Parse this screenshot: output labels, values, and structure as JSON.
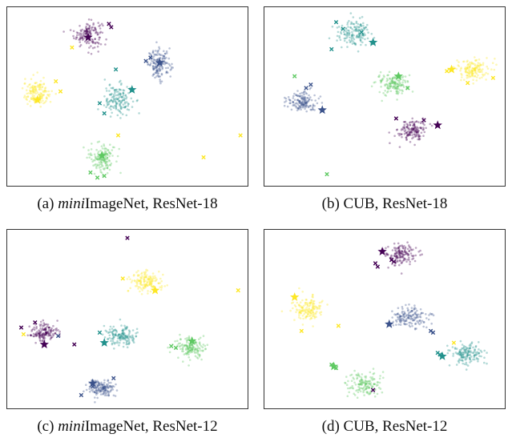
{
  "figure": {
    "panels": [
      {
        "letter": "(a)",
        "dataset_italic": "mini",
        "dataset_rest": "ImageNet",
        "backbone": ", ResNet-18"
      },
      {
        "letter": "(b)",
        "dataset_italic": "",
        "dataset_rest": "CUB",
        "backbone": ", ResNet-18"
      },
      {
        "letter": "(c)",
        "dataset_italic": "mini",
        "dataset_rest": "ImageNet",
        "backbone": ", ResNet-12"
      },
      {
        "letter": "(d)",
        "dataset_italic": "",
        "dataset_rest": "CUB",
        "backbone": ", ResNet-12"
      }
    ]
  },
  "palette": {
    "c0": "#440154",
    "c1": "#3b528b",
    "c2": "#21918c",
    "c3": "#5ec962",
    "c4": "#fde725"
  },
  "chart_data": [
    {
      "type": "scatter",
      "title": "",
      "xlabel": "",
      "ylabel": "",
      "grid": false,
      "ticks": false,
      "xlim": [
        0,
        100
      ],
      "ylim": [
        0,
        100
      ],
      "marker_legend": {
        "dots": "query samples",
        "x": "support samples",
        "star": "prototypes"
      },
      "clusters": [
        {
          "color": "c0",
          "center": [
            33,
            87
          ],
          "spread": [
            5.5,
            7
          ]
        },
        {
          "color": "c1",
          "center": [
            64,
            69
          ],
          "spread": [
            4.5,
            8
          ]
        },
        {
          "color": "c2",
          "center": [
            46,
            48
          ],
          "spread": [
            5.5,
            8
          ]
        },
        {
          "color": "c3",
          "center": [
            39,
            14
          ],
          "spread": [
            5,
            8
          ]
        },
        {
          "color": "c4",
          "center": [
            11,
            52
          ],
          "spread": [
            5.5,
            7
          ]
        }
      ],
      "prototypes": [
        {
          "color": "c0",
          "xy": [
            33,
            85
          ]
        },
        {
          "color": "c1",
          "xy": [
            64,
            70
          ]
        },
        {
          "color": "c2",
          "xy": [
            52,
            54
          ]
        },
        {
          "color": "c3",
          "xy": [
            39,
            15
          ]
        },
        {
          "color": "c4",
          "xy": [
            11,
            48
          ]
        }
      ],
      "support": [
        {
          "color": "c0",
          "xy": [
            42,
            93
          ]
        },
        {
          "color": "c0",
          "xy": [
            43,
            91
          ]
        },
        {
          "color": "c1",
          "xy": [
            60,
            73
          ]
        },
        {
          "color": "c1",
          "xy": [
            58,
            71
          ]
        },
        {
          "color": "c2",
          "xy": [
            45,
            66
          ]
        },
        {
          "color": "c2",
          "xy": [
            38,
            46
          ]
        },
        {
          "color": "c2",
          "xy": [
            40,
            40
          ]
        },
        {
          "color": "c3",
          "xy": [
            37,
            2
          ]
        },
        {
          "color": "c3",
          "xy": [
            34,
            5
          ]
        },
        {
          "color": "c3",
          "xy": [
            40,
            3
          ]
        },
        {
          "color": "c4",
          "xy": [
            19,
            59
          ]
        },
        {
          "color": "c4",
          "xy": [
            21,
            53
          ]
        },
        {
          "color": "c4",
          "xy": [
            99,
            27
          ]
        },
        {
          "color": "c4",
          "xy": [
            83,
            14
          ]
        },
        {
          "color": "c4",
          "xy": [
            46,
            27
          ]
        },
        {
          "color": "c4",
          "xy": [
            26,
            79
          ]
        }
      ]
    },
    {
      "type": "scatter",
      "title": "",
      "xlabel": "",
      "ylabel": "",
      "grid": false,
      "ticks": false,
      "xlim": [
        0,
        100
      ],
      "ylim": [
        0,
        100
      ],
      "marker_legend": {
        "dots": "query samples",
        "x": "support samples",
        "star": "prototypes"
      },
      "clusters": [
        {
          "color": "c0",
          "center": [
            62,
            30
          ],
          "spread": [
            5.5,
            6
          ]
        },
        {
          "color": "c1",
          "center": [
            14,
            47
          ],
          "spread": [
            6,
            5.5
          ]
        },
        {
          "color": "c2",
          "center": [
            37,
            88
          ],
          "spread": [
            6.5,
            6.5
          ]
        },
        {
          "color": "c3",
          "center": [
            53,
            57
          ],
          "spread": [
            6.5,
            5.5
          ]
        },
        {
          "color": "c4",
          "center": [
            88,
            66
          ],
          "spread": [
            6.5,
            5.5
          ]
        }
      ],
      "prototypes": [
        {
          "color": "c0",
          "xy": [
            73,
            33
          ]
        },
        {
          "color": "c1",
          "xy": [
            23,
            42
          ]
        },
        {
          "color": "c2",
          "xy": [
            45,
            82
          ]
        },
        {
          "color": "c3",
          "xy": [
            56,
            62
          ]
        },
        {
          "color": "c4",
          "xy": [
            79,
            66
          ]
        }
      ],
      "support": [
        {
          "color": "c2",
          "xy": [
            29,
            94
          ]
        },
        {
          "color": "c2",
          "xy": [
            32,
            90
          ]
        },
        {
          "color": "c2",
          "xy": [
            40,
            88
          ]
        },
        {
          "color": "c2",
          "xy": [
            27,
            78
          ]
        },
        {
          "color": "c1",
          "xy": [
            16,
            55
          ]
        },
        {
          "color": "c1",
          "xy": [
            18,
            57
          ]
        },
        {
          "color": "c3",
          "xy": [
            11,
            62
          ]
        },
        {
          "color": "c3",
          "xy": [
            25,
            4
          ]
        },
        {
          "color": "c3",
          "xy": [
            60,
            55
          ]
        },
        {
          "color": "c4",
          "xy": [
            77,
            65
          ]
        },
        {
          "color": "c4",
          "xy": [
            86,
            58
          ]
        },
        {
          "color": "c4",
          "xy": [
            97,
            61
          ]
        },
        {
          "color": "c0",
          "xy": [
            55,
            37
          ]
        },
        {
          "color": "c0",
          "xy": [
            67,
            36
          ]
        }
      ]
    },
    {
      "type": "scatter",
      "title": "",
      "xlabel": "",
      "ylabel": "",
      "grid": false,
      "ticks": false,
      "xlim": [
        0,
        100
      ],
      "ylim": [
        0,
        100
      ],
      "marker_legend": {
        "dots": "query samples",
        "x": "support samples",
        "star": "prototypes"
      },
      "clusters": [
        {
          "color": "c0",
          "center": [
            14,
            42
          ],
          "spread": [
            5.5,
            5
          ]
        },
        {
          "color": "c1",
          "center": [
            39,
            9
          ],
          "spread": [
            5.5,
            4.5
          ]
        },
        {
          "color": "c2",
          "center": [
            47,
            40
          ],
          "spread": [
            6,
            5.5
          ]
        },
        {
          "color": "c3",
          "center": [
            77,
            33
          ],
          "spread": [
            6,
            5.5
          ]
        },
        {
          "color": "c4",
          "center": [
            58,
            72
          ],
          "spread": [
            6,
            5.5
          ]
        }
      ],
      "prototypes": [
        {
          "color": "c0",
          "xy": [
            14,
            35
          ]
        },
        {
          "color": "c1",
          "xy": [
            35,
            12
          ]
        },
        {
          "color": "c2",
          "xy": [
            40,
            36
          ]
        },
        {
          "color": "c3",
          "xy": [
            78,
            37
          ]
        },
        {
          "color": "c4",
          "xy": [
            62,
            67
          ]
        }
      ],
      "support": [
        {
          "color": "c0",
          "xy": [
            50,
            98
          ]
        },
        {
          "color": "c0",
          "xy": [
            10,
            48
          ]
        },
        {
          "color": "c0",
          "xy": [
            27,
            35
          ]
        },
        {
          "color": "c0",
          "xy": [
            4,
            45
          ]
        },
        {
          "color": "c1",
          "xy": [
            35,
            10
          ]
        },
        {
          "color": "c1",
          "xy": [
            30,
            5
          ]
        },
        {
          "color": "c1",
          "xy": [
            20,
            40
          ]
        },
        {
          "color": "c1",
          "xy": [
            44,
            15
          ]
        },
        {
          "color": "c3",
          "xy": [
            69,
            34
          ]
        },
        {
          "color": "c3",
          "xy": [
            71,
            33
          ]
        },
        {
          "color": "c4",
          "xy": [
            48,
            74
          ]
        },
        {
          "color": "c4",
          "xy": [
            98,
            67
          ]
        },
        {
          "color": "c4",
          "xy": [
            5,
            41
          ]
        },
        {
          "color": "c2",
          "xy": [
            38,
            42
          ]
        }
      ]
    },
    {
      "type": "scatter",
      "title": "",
      "xlabel": "",
      "ylabel": "",
      "grid": false,
      "ticks": false,
      "xlim": [
        0,
        100
      ],
      "ylim": [
        0,
        100
      ],
      "marker_legend": {
        "dots": "query samples",
        "x": "support samples",
        "star": "prototypes"
      },
      "clusters": [
        {
          "color": "c0",
          "center": [
            57,
            88
          ],
          "spread": [
            6,
            6
          ]
        },
        {
          "color": "c1",
          "center": [
            61,
            51
          ],
          "spread": [
            7,
            5.5
          ]
        },
        {
          "color": "c2",
          "center": [
            86,
            29
          ],
          "spread": [
            6.5,
            6
          ]
        },
        {
          "color": "c3",
          "center": [
            41,
            11
          ],
          "spread": [
            6.5,
            6.5
          ]
        },
        {
          "color": "c4",
          "center": [
            16,
            56
          ],
          "spread": [
            6,
            7
          ]
        }
      ],
      "prototypes": [
        {
          "color": "c0",
          "xy": [
            49,
            90
          ]
        },
        {
          "color": "c1",
          "xy": [
            52,
            47
          ]
        },
        {
          "color": "c2",
          "xy": [
            75,
            28
          ]
        },
        {
          "color": "c3",
          "xy": [
            28,
            22
          ]
        },
        {
          "color": "c4",
          "xy": [
            11,
            63
          ]
        }
      ],
      "support": [
        {
          "color": "c0",
          "xy": [
            46,
            83
          ]
        },
        {
          "color": "c0",
          "xy": [
            47,
            81
          ]
        },
        {
          "color": "c0",
          "xy": [
            53,
            85
          ]
        },
        {
          "color": "c0",
          "xy": [
            54,
            84
          ]
        },
        {
          "color": "c1",
          "xy": [
            70,
            43
          ]
        },
        {
          "color": "c1",
          "xy": [
            71,
            42
          ]
        },
        {
          "color": "c2",
          "xy": [
            73,
            30
          ]
        },
        {
          "color": "c2",
          "xy": [
            74,
            29
          ]
        },
        {
          "color": "c4",
          "xy": [
            80,
            36
          ]
        },
        {
          "color": "c4",
          "xy": [
            30,
            46
          ]
        },
        {
          "color": "c4",
          "xy": [
            14,
            43
          ]
        },
        {
          "color": "c3",
          "xy": [
            27,
            23
          ]
        },
        {
          "color": "c3",
          "xy": [
            29,
            21
          ]
        },
        {
          "color": "c0",
          "xy": [
            45,
            8
          ]
        }
      ]
    }
  ]
}
